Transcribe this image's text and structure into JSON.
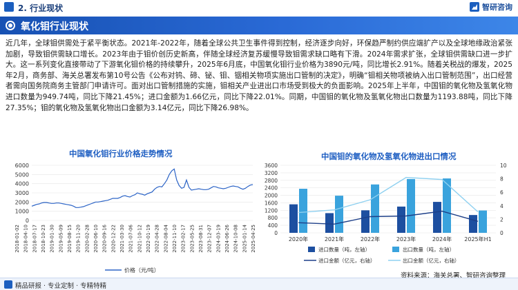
{
  "header": {
    "section": "2. 行业现状",
    "brand": "智研咨询"
  },
  "title": "氧化钼行业现状",
  "paragraph": "近几年，全球钼供需处于紧平衡状态。2021年-2022年，随着全球公共卫生事件得到控制，经济逐步向好，环保趋严制约供应端扩产以及全球地缘政治紧张加剧，导致钼供需缺口增长。2023年由于钼价创历史新高，伴随全球经济复苏缓慢导致钼需求缺口略有下滑。2024年需求扩张，全球钼供需缺口进一步扩大。这一系列变化直接带动了下游氧化钼价格的持续攀升，2025年6月底，中国氧化钼行业价格为3890元/吨，同比增长2.91%。随着关税战的爆发，2025年2月，商务部、海关总署发布第10号公告《公布对钨、碲、铋、钼、铟相关物项实施出口管制的决定》，明确“钼相关物项被纳入出口管制范围”，出口经营者需向国务院商务主管部门申请许可。面对出口管制措施的实施，钼相关产业进出口市场受到极大的负面影响。2025年上半年，中国钼的氧化物及氢氧化物进口数量为949.74吨，同比下降21.45%；进口金额为1.66亿元，同比下降22.01%。同期，中国钼的氧化物及氢氧化物出口数量为1193.88吨，同比下降27.35%；钼的氧化物及氢氧化物出口金额为3.14亿元，同比下降26.98%。",
  "footer": {
    "slogan": "精品研报 · 专业定制 · 专精特精",
    "source": "资料来源：海关总署、智研咨询整理"
  },
  "chart_data": [
    {
      "type": "line",
      "title": "中国氧化钼行业价格走势情况",
      "ylim": [
        0,
        6000
      ],
      "yticks": [
        "0",
        "1000",
        "2000",
        "3000",
        "4000",
        "5000",
        "6000"
      ],
      "x_tick_labels": [
        "2018-01-02",
        "2018-04-10",
        "2018-07-17",
        "2018-10-23",
        "2019-01-30",
        "2019-05-09",
        "2019-08-15",
        "2019-11-20",
        "2020-02-28",
        "2020-06-10",
        "2020-09-16",
        "2020-12-22",
        "2021-03-30",
        "2021-07-06",
        "2021-10-12",
        "2022-01-19",
        "2022-04-28",
        "2022-08-04",
        "2022-11-10",
        "2023-02-17",
        "2023-05-25",
        "2023-08-31",
        "2023-12-07",
        "2024-03-19",
        "2024-06-26",
        "2024-10-08",
        "2025-01-14",
        "2025-04-25"
      ],
      "series": [
        {
          "name": "价格（元/吨）",
          "color": "#2b63c6",
          "values": [
            1550,
            1650,
            1750,
            1800,
            1900,
            1950,
            1950,
            1900,
            1850,
            1850,
            1900,
            1900,
            1850,
            1800,
            1750,
            1700,
            1650,
            1550,
            1400,
            1400,
            1450,
            1500,
            1600,
            1700,
            1800,
            1900,
            2000,
            2000,
            2050,
            2100,
            2150,
            2200,
            2300,
            2400,
            2400,
            2400,
            2500,
            2650,
            2700,
            2600,
            2550,
            2700,
            2800,
            3000,
            2900,
            2850,
            2750,
            2900,
            3000,
            3100,
            3400,
            3600,
            3700,
            3650,
            4000,
            4400,
            5000,
            5400,
            5600,
            4400,
            3800,
            3500,
            3600,
            4400,
            3600,
            3300,
            3350,
            3400,
            3450,
            3400,
            3350,
            3350,
            3400,
            3550,
            3700,
            3650,
            3550,
            3500,
            3450,
            3500,
            3600,
            3700,
            3750,
            3700,
            3650,
            3500,
            3400,
            3500,
            3700,
            3850,
            3900
          ]
        }
      ]
    },
    {
      "type": "bar",
      "title": "中国钼的氧化物及氢氧化物进出口情况",
      "categories": [
        "2020年",
        "2021年",
        "2022年",
        "2023年",
        "2024年",
        "2025年H1"
      ],
      "y_left": {
        "ylim": [
          0,
          3600
        ],
        "ticks": [
          "0",
          "400",
          "800",
          "1200",
          "1600",
          "2000",
          "2400",
          "2800",
          "3200",
          "3600"
        ]
      },
      "y_right": {
        "ylim": [
          0,
          10
        ],
        "ticks": [
          "0",
          "2",
          "4",
          "6",
          "8",
          "10"
        ]
      },
      "series": [
        {
          "name": "进口数量（吨，左轴）",
          "axis": "left",
          "color": "#1d4fa0",
          "values": [
            1520,
            1050,
            1200,
            1400,
            1650,
            950
          ]
        },
        {
          "name": "出口数量（吨，左轴）",
          "axis": "left",
          "color": "#3aa3dd",
          "values": [
            2350,
            1980,
            2580,
            2870,
            2900,
            1190
          ]
        },
        {
          "name": "进口金额（亿元，右轴）",
          "axis": "right",
          "color": "#1d3f88",
          "values": [
            1.5,
            1.3,
            2.4,
            2.5,
            3.2,
            1.7
          ]
        },
        {
          "name": "出口金额（亿元，右轴）",
          "axis": "right",
          "color": "#8ed0f0",
          "values": [
            3.0,
            3.4,
            4.9,
            8.2,
            7.9,
            3.1
          ]
        }
      ]
    }
  ]
}
